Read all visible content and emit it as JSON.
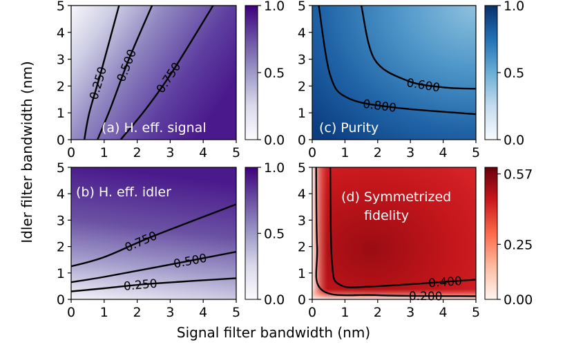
{
  "chart_data": [
    {
      "id": "a",
      "type": "heatmap",
      "title": "(a) H. eff. signal",
      "xlabel": "Signal filter bandwidth (nm)",
      "ylabel": "Idler filter bandwidth (nm)",
      "xlim": [
        0,
        5
      ],
      "ylim": [
        0,
        5
      ],
      "xticks": [
        "0",
        "1",
        "2",
        "3",
        "4",
        "5"
      ],
      "yticks": [
        "0",
        "1",
        "2",
        "3",
        "4",
        "5"
      ],
      "colormap": "Purples",
      "colorbar": {
        "range": [
          0,
          1.0
        ],
        "ticks": [
          0.0,
          0.5,
          1.0
        ],
        "tick_labels": [
          "0.0",
          "0.5",
          "1.0"
        ]
      },
      "contours": [
        {
          "level_label": "0.250",
          "points": [
            [
              0.4,
              0
            ],
            [
              0.55,
              1.0
            ],
            [
              0.9,
              2.5
            ],
            [
              1.45,
              5
            ]
          ]
        },
        {
          "level_label": "0.500",
          "points": [
            [
              0.8,
              0
            ],
            [
              1.2,
              1.2
            ],
            [
              1.75,
              3.0
            ],
            [
              2.45,
              5
            ]
          ]
        },
        {
          "level_label": "0.750",
          "points": [
            [
              1.5,
              0
            ],
            [
              2.3,
              1.2
            ],
            [
              3.1,
              2.6
            ],
            [
              4.3,
              5
            ]
          ]
        }
      ]
    },
    {
      "id": "b",
      "type": "heatmap",
      "title": "(b) H. eff. idler",
      "xlim": [
        0,
        5
      ],
      "ylim": [
        0,
        5
      ],
      "xticks": [
        "0",
        "1",
        "2",
        "3",
        "4",
        "5"
      ],
      "yticks": [
        "0",
        "1",
        "2",
        "3",
        "4",
        "5"
      ],
      "colormap": "Purples",
      "colorbar": {
        "range": [
          0,
          1.0
        ],
        "ticks": [
          0.0,
          0.5,
          1.0
        ],
        "tick_labels": [
          "0.0",
          "0.5",
          "1.0"
        ]
      },
      "contours": [
        {
          "level_label": "0.250",
          "points": [
            [
              0,
              0.3
            ],
            [
              1.0,
              0.42
            ],
            [
              2.5,
              0.6
            ],
            [
              5,
              0.8
            ]
          ]
        },
        {
          "level_label": "0.500",
          "points": [
            [
              0,
              0.65
            ],
            [
              1.0,
              0.85
            ],
            [
              2.5,
              1.2
            ],
            [
              5,
              1.8
            ]
          ]
        },
        {
          "level_label": "0.750",
          "points": [
            [
              0,
              1.25
            ],
            [
              1.0,
              1.6
            ],
            [
              2.5,
              2.4
            ],
            [
              5,
              3.6
            ]
          ]
        }
      ]
    },
    {
      "id": "c",
      "type": "heatmap",
      "title": "(c) Purity",
      "xlim": [
        0,
        5
      ],
      "ylim": [
        0,
        5
      ],
      "xticks": [
        "0",
        "1",
        "2",
        "3",
        "4",
        "5"
      ],
      "yticks": [
        "0",
        "1",
        "2",
        "3",
        "4",
        "5"
      ],
      "colormap": "Blues",
      "colorbar": {
        "range": [
          0,
          1.0
        ],
        "ticks": [
          0.0,
          0.5,
          1.0
        ],
        "tick_labels": [
          "0.0",
          "0.5",
          "1.0"
        ]
      },
      "contours": [
        {
          "level_label": "0.800",
          "points": [
            [
              0.2,
              5
            ],
            [
              0.55,
              2.4
            ],
            [
              1.1,
              1.55
            ],
            [
              2.5,
              1.2
            ],
            [
              5,
              0.95
            ]
          ]
        },
        {
          "level_label": "0.600",
          "points": [
            [
              1.5,
              5
            ],
            [
              1.9,
              3.0
            ],
            [
              2.9,
              2.2
            ],
            [
              4.0,
              1.95
            ],
            [
              5,
              1.9
            ]
          ]
        }
      ]
    },
    {
      "id": "d",
      "type": "heatmap",
      "title": "(d) Symmetrized fidelity",
      "title_lines": [
        "(d) Symmetrized",
        "fidelity"
      ],
      "xlim": [
        0,
        5
      ],
      "ylim": [
        0,
        5
      ],
      "xticks": [
        "0",
        "1",
        "2",
        "3",
        "4",
        "5"
      ],
      "yticks": [
        "0",
        "1",
        "2",
        "3",
        "4",
        "5"
      ],
      "colormap": "Reds",
      "colorbar": {
        "range": [
          0,
          0.6
        ],
        "ticks": [
          0.0,
          0.25,
          0.57
        ],
        "tick_labels": [
          "0.00",
          "0.25",
          "0.57"
        ]
      },
      "contours": [
        {
          "level_label": "0.200",
          "points": [
            [
              0.12,
              5
            ],
            [
              0.15,
              2.0
            ],
            [
              0.3,
              0.35
            ],
            [
              2.0,
              0.16
            ],
            [
              5,
              0.12
            ]
          ]
        },
        {
          "level_label": "0.400",
          "points": [
            [
              0.55,
              5
            ],
            [
              0.6,
              1.5
            ],
            [
              0.85,
              0.55
            ],
            [
              2.0,
              0.5
            ],
            [
              5,
              0.75
            ]
          ]
        }
      ]
    }
  ],
  "shared": {
    "xlabel": "Signal filter bandwidth (nm)",
    "ylabel": "Idler filter bandwidth (nm)"
  },
  "colors": {
    "purple_dark": "#54278f",
    "purple_light": "#fcfbfd",
    "blue_dark": "#08306b",
    "blue_light": "#f7fbff",
    "red_dark": "#67000d",
    "red_light": "#fff5f0"
  }
}
